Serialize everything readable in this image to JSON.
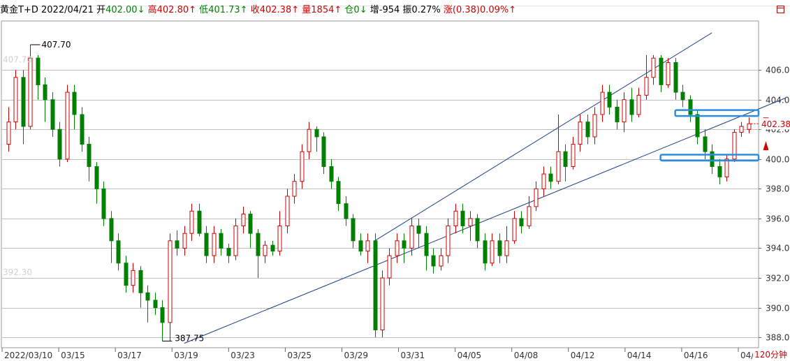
{
  "header": {
    "symbol": "黄金T+D",
    "date": "2022/04/21",
    "open_label": "开",
    "open": "402.00↓",
    "high_label": "高",
    "high": "402.80↑",
    "low_label": "低",
    "low": "401.73↑",
    "close_label": "收",
    "close": "402.38↑",
    "vol_label": "量",
    "vol": "1854↑",
    "oi_label": "仓",
    "oi": "0↓",
    "inc_label": "增",
    "inc": "-954",
    "amp_label": "振",
    "amp": "0.27%",
    "chg_label": "涨",
    "chg": "(0.38)0.09%↑"
  },
  "period_label": "120分钟",
  "price_tag": "402.38",
  "colors": {
    "up": "#d00000",
    "down": "#008000",
    "grid": "#bfbfbf",
    "channel": "#1a3a8a",
    "zone": "#2a8ee0"
  },
  "chart_data": {
    "type": "candlestick",
    "ylim": [
      387.3,
      409.3
    ],
    "yticks": [
      406.0,
      404.0,
      402.0,
      400.0,
      398.0,
      396.0,
      394.0,
      392.0,
      390.0,
      388.0
    ],
    "x_labels": [
      "2022/03/10",
      "03/15",
      "03/17",
      "03/19",
      "03/23",
      "03/25",
      "03/29",
      "03/31",
      "04/05",
      "04/08",
      "04/12",
      "04/14",
      "04/16",
      "04/20"
    ],
    "annotations": {
      "max_label": "407.70",
      "min_label": "387.75",
      "last_price": 402.38,
      "faded_top": "407.70",
      "faded_mid": "392.30"
    },
    "candles": [
      [
        401.0,
        402.5,
        403.5,
        400.5
      ],
      [
        402.5,
        405.5,
        406.0,
        402.0
      ],
      [
        405.5,
        402.2,
        406.0,
        401.0
      ],
      [
        402.2,
        406.8,
        407.7,
        402.0
      ],
      [
        406.8,
        405.0,
        407.0,
        404.0
      ],
      [
        405.0,
        404.0,
        405.5,
        402.5
      ],
      [
        404.0,
        402.0,
        404.5,
        401.5
      ],
      [
        402.0,
        400.0,
        402.5,
        399.5
      ],
      [
        400.0,
        404.5,
        405.0,
        399.8
      ],
      [
        404.5,
        403.0,
        405.0,
        402.0
      ],
      [
        403.0,
        401.0,
        403.5,
        400.5
      ],
      [
        401.0,
        399.5,
        401.5,
        398.5
      ],
      [
        399.5,
        398.0,
        399.8,
        397.0
      ],
      [
        398.0,
        396.0,
        398.5,
        395.5
      ],
      [
        396.0,
        394.5,
        396.5,
        393.0
      ],
      [
        394.5,
        393.0,
        395.0,
        392.5
      ],
      [
        393.0,
        391.5,
        393.5,
        391.0
      ],
      [
        391.5,
        392.5,
        393.0,
        391.0
      ],
      [
        392.5,
        391.0,
        392.8,
        390.0
      ],
      [
        391.0,
        390.5,
        391.5,
        389.0
      ],
      [
        390.5,
        390.0,
        391.0,
        389.5
      ],
      [
        390.0,
        389.0,
        390.5,
        387.75
      ],
      [
        389.0,
        394.5,
        395.0,
        387.75
      ],
      [
        394.5,
        394.0,
        395.2,
        393.5
      ],
      [
        394.0,
        395.0,
        395.5,
        393.5
      ],
      [
        395.0,
        396.5,
        397.0,
        394.5
      ],
      [
        396.5,
        395.0,
        397.0,
        394.8
      ],
      [
        395.0,
        393.5,
        395.5,
        393.0
      ],
      [
        393.5,
        395.0,
        395.5,
        393.0
      ],
      [
        395.0,
        394.0,
        395.3,
        393.5
      ],
      [
        394.0,
        393.5,
        394.3,
        393.0
      ],
      [
        393.5,
        395.5,
        396.0,
        393.2
      ],
      [
        395.5,
        396.3,
        396.8,
        395.0
      ],
      [
        396.3,
        395.0,
        396.5,
        394.0
      ],
      [
        395.0,
        393.5,
        395.3,
        392.0
      ],
      [
        393.5,
        394.2,
        394.5,
        393.0
      ],
      [
        394.2,
        393.8,
        394.5,
        393.5
      ],
      [
        393.8,
        395.5,
        396.5,
        393.5
      ],
      [
        395.5,
        397.5,
        398.0,
        395.0
      ],
      [
        397.5,
        398.5,
        399.0,
        397.0
      ],
      [
        398.5,
        400.5,
        401.0,
        398.0
      ],
      [
        400.5,
        402.0,
        402.5,
        400.0
      ],
      [
        402.0,
        401.5,
        402.2,
        400.5
      ],
      [
        401.5,
        399.5,
        401.8,
        399.0
      ],
      [
        399.5,
        398.5,
        400.0,
        398.0
      ],
      [
        398.5,
        397.0,
        398.8,
        396.5
      ],
      [
        397.0,
        396.0,
        397.5,
        395.5
      ],
      [
        396.0,
        394.5,
        396.3,
        394.0
      ],
      [
        394.5,
        393.8,
        395.0,
        393.5
      ],
      [
        393.8,
        394.5,
        395.0,
        393.0
      ],
      [
        394.5,
        388.5,
        395.0,
        388.0
      ],
      [
        388.5,
        392.0,
        392.5,
        388.0
      ],
      [
        392.0,
        393.5,
        394.0,
        391.5
      ],
      [
        393.5,
        394.5,
        395.0,
        393.0
      ],
      [
        394.5,
        394.0,
        395.0,
        393.0
      ],
      [
        394.0,
        395.5,
        396.0,
        393.5
      ],
      [
        395.5,
        395.0,
        396.0,
        394.0
      ],
      [
        395.0,
        393.5,
        395.5,
        392.5
      ],
      [
        393.5,
        392.8,
        394.0,
        392.3
      ],
      [
        392.8,
        393.5,
        394.0,
        392.5
      ],
      [
        393.5,
        395.5,
        396.0,
        393.0
      ],
      [
        395.5,
        396.5,
        397.0,
        395.0
      ],
      [
        396.5,
        395.5,
        397.0,
        395.0
      ],
      [
        395.5,
        396.0,
        396.5,
        394.5
      ],
      [
        396.0,
        394.5,
        396.3,
        394.0
      ],
      [
        394.5,
        393.0,
        395.0,
        392.5
      ],
      [
        393.0,
        394.5,
        395.0,
        392.8
      ],
      [
        394.5,
        393.5,
        395.0,
        393.0
      ],
      [
        393.5,
        394.5,
        395.5,
        393.0
      ],
      [
        394.5,
        396.0,
        396.5,
        394.3
      ],
      [
        396.0,
        395.5,
        396.5,
        395.0
      ],
      [
        395.5,
        396.8,
        397.5,
        395.3
      ],
      [
        396.8,
        398.0,
        398.5,
        396.5
      ],
      [
        398.0,
        399.0,
        399.5,
        397.5
      ],
      [
        399.0,
        398.5,
        399.5,
        398.0
      ],
      [
        398.5,
        400.5,
        403.0,
        398.3
      ],
      [
        400.5,
        399.5,
        401.0,
        398.5
      ],
      [
        399.5,
        401.0,
        401.5,
        399.3
      ],
      [
        401.0,
        402.5,
        403.0,
        400.5
      ],
      [
        402.5,
        401.5,
        403.0,
        401.0
      ],
      [
        401.5,
        403.0,
        403.5,
        401.0
      ],
      [
        403.0,
        404.5,
        405.0,
        402.5
      ],
      [
        404.5,
        403.5,
        405.0,
        403.0
      ],
      [
        403.5,
        402.5,
        404.0,
        402.0
      ],
      [
        402.5,
        404.0,
        404.5,
        401.8
      ],
      [
        404.0,
        403.0,
        404.8,
        402.5
      ],
      [
        403.0,
        404.3,
        404.8,
        402.8
      ],
      [
        404.3,
        405.5,
        407.0,
        404.0
      ],
      [
        405.5,
        406.8,
        407.0,
        405.0
      ],
      [
        406.8,
        405.0,
        407.0,
        404.5
      ],
      [
        405.0,
        406.5,
        406.8,
        404.8
      ],
      [
        406.5,
        404.5,
        406.8,
        404.0
      ],
      [
        404.5,
        404.0,
        405.0,
        403.5
      ],
      [
        404.0,
        403.0,
        404.3,
        402.5
      ],
      [
        403.0,
        401.5,
        403.3,
        401.0
      ],
      [
        401.5,
        400.5,
        402.0,
        400.0
      ],
      [
        400.5,
        399.5,
        401.0,
        399.0
      ],
      [
        399.5,
        398.8,
        400.0,
        398.3
      ],
      [
        398.8,
        400.0,
        400.3,
        398.5
      ],
      [
        400.0,
        401.8,
        402.0,
        399.8
      ],
      [
        401.8,
        402.2,
        402.5,
        401.5
      ],
      [
        402.0,
        402.38,
        402.8,
        401.73
      ]
    ]
  }
}
